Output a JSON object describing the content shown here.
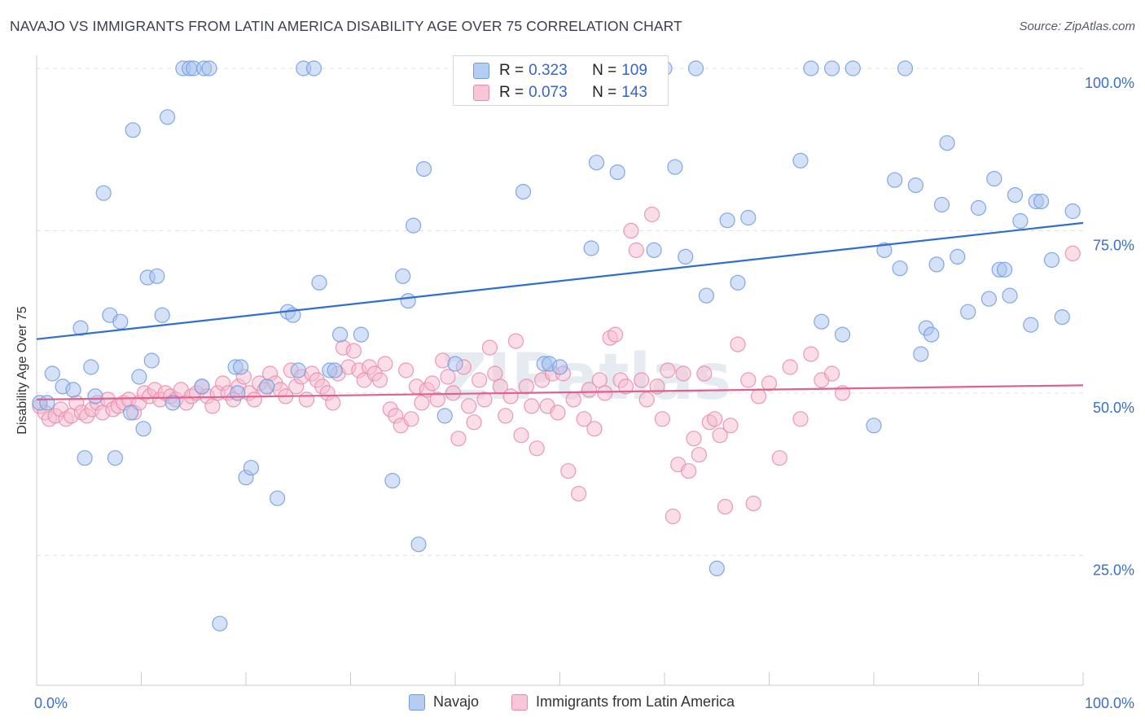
{
  "title": "NAVAJO VS IMMIGRANTS FROM LATIN AMERICA DISABILITY AGE OVER 75 CORRELATION CHART",
  "source": "Source: ZipAtlas.com",
  "watermark": "ZIPatlas",
  "chart_data": {
    "type": "scatter",
    "ylabel": "Disability Age Over 75",
    "xlim": [
      0,
      100
    ],
    "ylim": [
      5,
      102
    ],
    "x_tick_labels": [
      {
        "value": 0,
        "label": "0.0%"
      },
      {
        "value": 100,
        "label": "100.0%"
      }
    ],
    "y_tick_labels": [
      {
        "value": 100,
        "label": "100.0%"
      },
      {
        "value": 75,
        "label": "75.0%"
      },
      {
        "value": 50,
        "label": "50.0%"
      },
      {
        "value": 25,
        "label": "25.0%"
      }
    ],
    "grid": "horizontal dashed",
    "legend_position": "bottom-center",
    "stats": [
      {
        "r_label": "R = ",
        "r": "0.323",
        "n_label": "N = ",
        "n": "109"
      },
      {
        "r_label": "R = ",
        "r": "0.073",
        "n_label": "N = ",
        "n": "143"
      }
    ],
    "series": [
      {
        "name": "Navajo",
        "color": "#6f9be0",
        "fill": "#a9c4ee",
        "line_color": "#2f6fcf",
        "trend": [
          [
            0,
            58.3
          ],
          [
            100,
            76.2
          ]
        ],
        "points": [
          [
            0.3,
            48.5
          ],
          [
            1,
            48.5
          ],
          [
            1.5,
            53
          ],
          [
            2.5,
            51
          ],
          [
            3.5,
            50.5
          ],
          [
            4.2,
            60
          ],
          [
            4.6,
            40
          ],
          [
            5.2,
            54
          ],
          [
            5.6,
            49.5
          ],
          [
            6.4,
            80.8
          ],
          [
            7,
            62
          ],
          [
            7.5,
            40
          ],
          [
            8,
            61
          ],
          [
            9,
            47
          ],
          [
            9.2,
            90.5
          ],
          [
            9.8,
            52.5
          ],
          [
            10.2,
            44.5
          ],
          [
            10.6,
            67.8
          ],
          [
            11,
            55
          ],
          [
            11.5,
            68
          ],
          [
            12,
            62
          ],
          [
            12.5,
            92.5
          ],
          [
            13,
            48.5
          ],
          [
            14,
            100
          ],
          [
            14.6,
            100
          ],
          [
            15,
            100
          ],
          [
            15.8,
            51
          ],
          [
            16,
            100
          ],
          [
            16.5,
            100
          ],
          [
            17.5,
            14.5
          ],
          [
            19,
            54
          ],
          [
            19.2,
            50
          ],
          [
            19.5,
            54
          ],
          [
            20,
            37
          ],
          [
            20.5,
            38.5
          ],
          [
            22,
            51
          ],
          [
            23,
            33.8
          ],
          [
            24,
            62.5
          ],
          [
            24.5,
            62
          ],
          [
            25,
            53.5
          ],
          [
            25.5,
            100
          ],
          [
            26.5,
            100
          ],
          [
            27,
            67
          ],
          [
            28,
            53.5
          ],
          [
            28.5,
            53.5
          ],
          [
            29,
            59
          ],
          [
            31,
            59
          ],
          [
            34,
            36.5
          ],
          [
            35,
            68
          ],
          [
            35.5,
            64.2
          ],
          [
            36,
            75.8
          ],
          [
            36.5,
            26.7
          ],
          [
            37,
            84.5
          ],
          [
            39,
            46.5
          ],
          [
            40,
            54.5
          ],
          [
            45,
            100
          ],
          [
            46.5,
            81
          ],
          [
            48.5,
            54.5
          ],
          [
            49,
            54.5
          ],
          [
            50,
            54
          ],
          [
            53,
            72.3
          ],
          [
            53.5,
            85.5
          ],
          [
            55.5,
            84
          ],
          [
            58,
            100
          ],
          [
            59,
            72
          ],
          [
            60,
            100
          ],
          [
            61,
            84.8
          ],
          [
            62,
            71
          ],
          [
            63,
            100
          ],
          [
            64,
            65
          ],
          [
            65,
            23
          ],
          [
            66,
            76.6
          ],
          [
            67,
            67
          ],
          [
            68,
            77
          ],
          [
            73,
            85.8
          ],
          [
            74,
            100
          ],
          [
            75,
            61
          ],
          [
            76,
            100
          ],
          [
            77,
            59
          ],
          [
            78,
            100
          ],
          [
            80,
            45
          ],
          [
            81,
            72
          ],
          [
            82,
            82.8
          ],
          [
            82.5,
            69.2
          ],
          [
            83,
            100
          ],
          [
            84,
            82
          ],
          [
            84.5,
            56
          ],
          [
            85,
            60
          ],
          [
            85.5,
            59
          ],
          [
            86,
            69.8
          ],
          [
            86.5,
            79
          ],
          [
            87,
            88.5
          ],
          [
            88,
            71
          ],
          [
            89,
            62.5
          ],
          [
            90,
            78.5
          ],
          [
            91,
            64.5
          ],
          [
            91.5,
            83
          ],
          [
            92,
            69
          ],
          [
            92.5,
            69
          ],
          [
            93,
            65
          ],
          [
            93.5,
            80.5
          ],
          [
            94,
            76.5
          ],
          [
            95,
            60.5
          ],
          [
            95.5,
            79.5
          ],
          [
            96,
            79.5
          ],
          [
            97,
            70.5
          ],
          [
            98,
            61.7
          ],
          [
            99,
            78
          ]
        ]
      },
      {
        "name": "Immigrants from Latin America",
        "color": "#e88aaa",
        "fill": "#f5bccf",
        "line_color": "#e06090",
        "trend": [
          [
            0,
            49.0
          ],
          [
            100,
            51.2
          ]
        ],
        "points": [
          [
            0.3,
            48
          ],
          [
            0.8,
            47
          ],
          [
            1.2,
            46
          ],
          [
            1.8,
            46.5
          ],
          [
            2.3,
            47.5
          ],
          [
            2.8,
            46
          ],
          [
            3.3,
            46.5
          ],
          [
            3.8,
            48.5
          ],
          [
            4.3,
            47
          ],
          [
            4.8,
            46.5
          ],
          [
            5.3,
            47.5
          ],
          [
            5.8,
            48.5
          ],
          [
            6.3,
            47
          ],
          [
            6.8,
            49
          ],
          [
            7.3,
            47.5
          ],
          [
            7.8,
            48
          ],
          [
            8.3,
            48.5
          ],
          [
            8.8,
            49
          ],
          [
            9.3,
            47
          ],
          [
            9.8,
            48.5
          ],
          [
            10.3,
            50
          ],
          [
            10.8,
            49.5
          ],
          [
            11.3,
            50.5
          ],
          [
            11.8,
            49
          ],
          [
            12.3,
            50
          ],
          [
            12.8,
            49.5
          ],
          [
            13.3,
            49
          ],
          [
            13.8,
            50.5
          ],
          [
            14.3,
            48.5
          ],
          [
            14.8,
            49.5
          ],
          [
            15.3,
            50
          ],
          [
            15.8,
            51
          ],
          [
            16.3,
            49.5
          ],
          [
            16.8,
            48
          ],
          [
            17.3,
            50
          ],
          [
            17.8,
            51.5
          ],
          [
            18.3,
            50
          ],
          [
            18.8,
            49
          ],
          [
            19.3,
            51
          ],
          [
            19.8,
            52.5
          ],
          [
            20.3,
            50
          ],
          [
            20.8,
            49
          ],
          [
            21.3,
            51.5
          ],
          [
            21.8,
            50.5
          ],
          [
            22.3,
            53
          ],
          [
            22.8,
            51.5
          ],
          [
            23.3,
            50.5
          ],
          [
            23.8,
            49.5
          ],
          [
            24.3,
            53.5
          ],
          [
            24.8,
            51
          ],
          [
            25.3,
            52.5
          ],
          [
            25.8,
            49
          ],
          [
            26.3,
            53
          ],
          [
            26.8,
            52
          ],
          [
            27.3,
            51
          ],
          [
            27.8,
            50
          ],
          [
            28.3,
            48.5
          ],
          [
            28.8,
            53
          ],
          [
            29.3,
            57
          ],
          [
            29.8,
            54
          ],
          [
            30.3,
            56.5
          ],
          [
            30.8,
            53.5
          ],
          [
            31.3,
            52
          ],
          [
            31.8,
            54
          ],
          [
            32.3,
            53
          ],
          [
            32.8,
            52
          ],
          [
            33.3,
            54.5
          ],
          [
            33.8,
            47.5
          ],
          [
            34.3,
            46.5
          ],
          [
            34.8,
            45
          ],
          [
            35.3,
            53.5
          ],
          [
            35.8,
            46
          ],
          [
            36.3,
            51
          ],
          [
            36.8,
            48.5
          ],
          [
            37.3,
            50.5
          ],
          [
            37.8,
            51.5
          ],
          [
            38.3,
            49
          ],
          [
            38.8,
            55
          ],
          [
            39.3,
            52.5
          ],
          [
            39.8,
            50
          ],
          [
            40.3,
            43
          ],
          [
            40.8,
            54
          ],
          [
            41.3,
            48
          ],
          [
            41.8,
            45.5
          ],
          [
            42.3,
            52
          ],
          [
            42.8,
            49
          ],
          [
            43.3,
            57
          ],
          [
            43.8,
            53
          ],
          [
            44.3,
            51
          ],
          [
            44.8,
            46.5
          ],
          [
            45.3,
            49.5
          ],
          [
            45.8,
            58
          ],
          [
            46.3,
            43.5
          ],
          [
            46.8,
            51
          ],
          [
            47.3,
            48
          ],
          [
            47.8,
            41.5
          ],
          [
            48.3,
            52
          ],
          [
            48.8,
            48
          ],
          [
            49.3,
            53
          ],
          [
            49.8,
            47
          ],
          [
            50.3,
            53
          ],
          [
            50.8,
            38
          ],
          [
            51.3,
            49
          ],
          [
            51.8,
            34.5
          ],
          [
            52.3,
            46
          ],
          [
            52.8,
            50.5
          ],
          [
            53.3,
            44.5
          ],
          [
            53.8,
            52
          ],
          [
            54.3,
            50
          ],
          [
            54.8,
            58.5
          ],
          [
            55.3,
            59
          ],
          [
            55.8,
            52
          ],
          [
            56.3,
            51
          ],
          [
            56.8,
            75
          ],
          [
            57.3,
            72
          ],
          [
            57.8,
            52
          ],
          [
            58.3,
            49
          ],
          [
            58.8,
            77.5
          ],
          [
            59.3,
            51
          ],
          [
            59.8,
            46
          ],
          [
            60.3,
            53.5
          ],
          [
            60.8,
            31
          ],
          [
            61.3,
            39
          ],
          [
            61.8,
            53
          ],
          [
            62.3,
            38
          ],
          [
            62.8,
            43
          ],
          [
            63.3,
            40.5
          ],
          [
            63.8,
            53
          ],
          [
            64.3,
            45.5
          ],
          [
            64.8,
            46
          ],
          [
            65.3,
            43.5
          ],
          [
            65.8,
            32.5
          ],
          [
            66.3,
            45
          ],
          [
            67,
            57.5
          ],
          [
            68,
            52
          ],
          [
            68.5,
            33
          ],
          [
            69,
            49.5
          ],
          [
            70,
            51.5
          ],
          [
            71,
            40
          ],
          [
            72,
            54
          ],
          [
            73,
            46
          ],
          [
            74,
            56
          ],
          [
            75,
            52
          ],
          [
            76,
            53
          ],
          [
            77,
            50
          ],
          [
            99,
            71.5
          ]
        ]
      }
    ]
  },
  "legend": [
    {
      "name": "Navajo"
    },
    {
      "name": "Immigrants from Latin America"
    }
  ]
}
